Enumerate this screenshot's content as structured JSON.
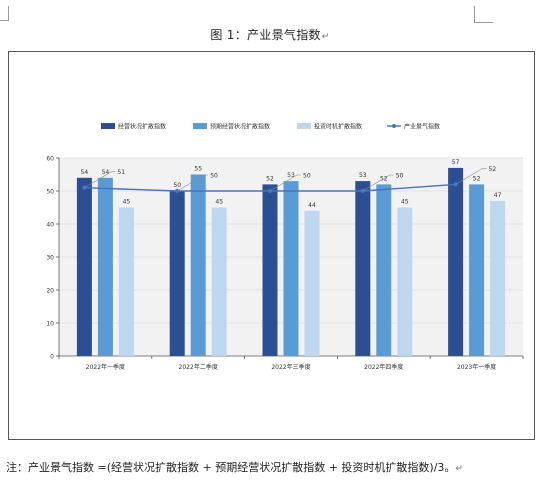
{
  "figure_title": "图 1：产业景气指数",
  "paragraph_mark": "↵",
  "note": "注：产业景气指数 =(经营状况扩散指数 + 预期经营状况扩散指数 + 投资时机扩散指数)/3。",
  "chart_data": {
    "type": "bar",
    "categories": [
      "2022年一季度",
      "2022年二季度",
      "2022年三季度",
      "2022年四季度",
      "2023年一季度"
    ],
    "series": [
      {
        "name": "经营状况扩散指数",
        "type": "bar",
        "color": "#2c4f94",
        "values": [
          54,
          50,
          52,
          53,
          57
        ]
      },
      {
        "name": "预期经营状况扩散指数",
        "type": "bar",
        "color": "#5b9bd5",
        "values": [
          54,
          55,
          53,
          52,
          52
        ]
      },
      {
        "name": "投资时机扩散指数",
        "type": "bar",
        "color": "#bdd7ee",
        "values": [
          45,
          45,
          44,
          45,
          47
        ]
      },
      {
        "name": "产业景气指数",
        "type": "line",
        "color": "#4472c4",
        "values": [
          51,
          50,
          50,
          50,
          52
        ]
      }
    ],
    "ylim": [
      0,
      60
    ],
    "yticks": [
      0,
      10,
      20,
      30,
      40,
      50,
      60
    ],
    "grid": true,
    "legend": "top"
  }
}
